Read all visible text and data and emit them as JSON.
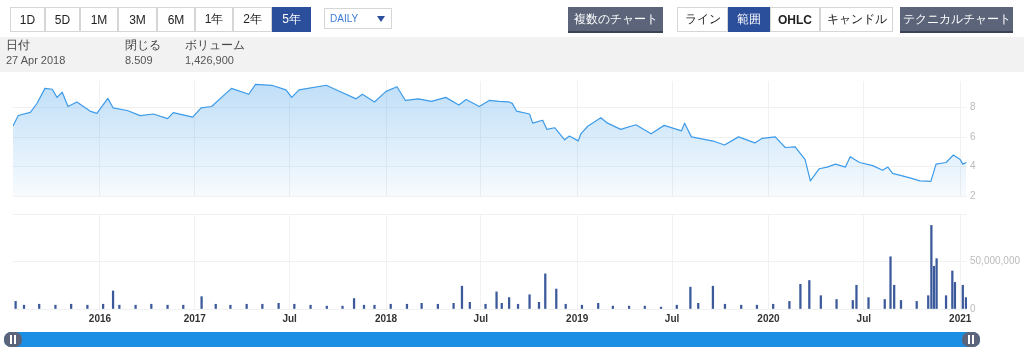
{
  "chart_data": [
    {
      "type": "other",
      "annotations": [
        "1D",
        "5D",
        "1M",
        "3M",
        "6M",
        "1年",
        "2年",
        "5年",
        "DAILY",
        "複数のチャート",
        "ライン",
        "範囲",
        "OHLC",
        "キャンドル",
        "テクニカルチャート",
        "日付",
        "27 Apr 2018",
        "閉じる",
        "8.509",
        "ボリューム",
        "1,426,900"
      ]
    },
    {
      "type": "area",
      "x": [
        "2016-01-20",
        "2016-01-30",
        "2016-02-22",
        "2016-03-06",
        "2016-03-21",
        "2016-04-04",
        "2016-04-13",
        "2016-04-23",
        "2016-05-04",
        "2016-05-21",
        "2016-06-15",
        "2016-06-28",
        "2016-07-19",
        "2016-07-29",
        "2016-08-25",
        "2016-09-19",
        "2016-10-14",
        "2016-11-10",
        "2016-11-21",
        "2016-12-28",
        "2017-01-13",
        "2017-02-02",
        "2017-03-12",
        "2017-04-14",
        "2017-04-27",
        "2017-05-28",
        "2017-06-24",
        "2017-07-05",
        "2017-07-19",
        "2017-09-09",
        "2017-10-04",
        "2017-11-05",
        "2017-11-17",
        "2017-12-10",
        "2018-01-01",
        "2018-01-22",
        "2018-02-07",
        "2018-03-04",
        "2018-03-29",
        "2018-04-25",
        "2018-05-20",
        "2018-06-03",
        "2018-06-28",
        "2018-07-17",
        "2018-08-05",
        "2018-08-24",
        "2018-08-30",
        "2018-09-07",
        "2018-10-02",
        "2018-10-08",
        "2018-10-27",
        "2018-11-04",
        "2018-11-19",
        "2018-12-08",
        "2018-12-17",
        "2019-01-03",
        "2019-01-08",
        "2019-01-21",
        "2019-02-15",
        "2019-02-28",
        "2019-03-25",
        "2019-04-23",
        "2019-05-22",
        "2019-06-16",
        "2019-07-19",
        "2019-07-25",
        "2019-08-07",
        "2019-09-20",
        "2019-10-09",
        "2019-11-05",
        "2019-12-06",
        "2019-12-20",
        "2020-01-14",
        "2020-02-02",
        "2020-02-21",
        "2020-03-11",
        "2020-03-21",
        "2020-04-07",
        "2020-04-22",
        "2020-05-08",
        "2020-05-27",
        "2020-06-05",
        "2020-06-23",
        "2020-07-18",
        "2020-08-06",
        "2020-08-16",
        "2020-08-25",
        "2020-09-27",
        "2020-10-16",
        "2020-11-06",
        "2020-11-16",
        "2020-12-05",
        "2020-12-19",
        "2021-01-01",
        "2021-01-06",
        "2021-01-13"
      ],
      "series": [
        {
          "color": "#3d9be9",
          "values": [
            6.75,
            7.46,
            7.67,
            8.29,
            9.3,
            9.24,
            8.69,
            9.04,
            8.07,
            8.38,
            7.76,
            7.6,
            8.62,
            7.98,
            7.8,
            7.45,
            7.56,
            7.25,
            7.66,
            7.35,
            7.98,
            8.07,
            9.3,
            8.9,
            9.57,
            9.51,
            9.2,
            8.69,
            9.2,
            9.51,
            9.1,
            8.59,
            8.9,
            8.38,
            9.1,
            9.41,
            8.48,
            8.59,
            8.42,
            8.69,
            8.17,
            8.54,
            8.07,
            8.48,
            8.42,
            8.38,
            8.28,
            7.76,
            7.56,
            6.94,
            7.14,
            6.52,
            6.63,
            5.81,
            6.07,
            5.74,
            6.22,
            6.73,
            7.31,
            6.94,
            6.52,
            6.83,
            6.22,
            6.79,
            6.42,
            6.94,
            6.01,
            5.7,
            5.46,
            6.01,
            5.6,
            5.91,
            6.01,
            5.29,
            5.33,
            4.47,
            3.03,
            3.85,
            3.96,
            4.16,
            3.96,
            4.67,
            4.27,
            4.06,
            3.75,
            3.96,
            3.54,
            3.23,
            3.03,
            2.99,
            4.16,
            4.27,
            4.78,
            4.47,
            4.16,
            4.27
          ]
        }
      ],
      "xlim": [
        "2016-01-20",
        "2021-01-14"
      ],
      "xticks": [
        {
          "value": "2016-07-04",
          "label": null
        },
        {
          "value": "2017-01-01",
          "label": null
        },
        {
          "value": "2017-07-01",
          "label": null
        },
        {
          "value": "2018-01-01",
          "label": null
        },
        {
          "value": "2018-07-01",
          "label": null
        },
        {
          "value": "2019-01-01",
          "label": null
        },
        {
          "value": "2019-07-01",
          "label": null
        },
        {
          "value": "2020-01-01",
          "label": null
        },
        {
          "value": "2020-07-01",
          "label": null
        },
        {
          "value": "2021-01-01",
          "label": null
        }
      ],
      "ylim": [
        2,
        9.8
      ],
      "yticks": [
        2,
        4,
        6,
        8
      ],
      "grid": true,
      "tick_labels": "y"
    },
    {
      "type": "bar",
      "x": [
        "2016-01-25",
        "2016-02-10",
        "2016-03-10",
        "2016-04-10",
        "2016-05-10",
        "2016-06-10",
        "2016-07-10",
        "2016-07-29",
        "2016-08-10",
        "2016-09-10",
        "2016-10-10",
        "2016-11-10",
        "2016-12-10",
        "2017-01-14",
        "2017-02-10",
        "2017-03-10",
        "2017-04-10",
        "2017-05-10",
        "2017-06-10",
        "2017-07-10",
        "2017-08-10",
        "2017-09-10",
        "2017-10-10",
        "2017-11-01",
        "2017-11-20",
        "2017-12-10",
        "2018-01-10",
        "2018-02-10",
        "2018-03-10",
        "2018-04-10",
        "2018-05-10",
        "2018-05-26",
        "2018-06-10",
        "2018-07-10",
        "2018-07-31",
        "2018-08-10",
        "2018-08-24",
        "2018-09-10",
        "2018-10-02",
        "2018-10-20",
        "2018-11-01",
        "2018-11-22",
        "2018-12-10",
        "2019-01-10",
        "2019-02-10",
        "2019-03-10",
        "2019-04-10",
        "2019-05-10",
        "2019-06-10",
        "2019-07-10",
        "2019-08-05",
        "2019-08-20",
        "2019-09-17",
        "2019-10-10",
        "2019-11-10",
        "2019-12-10",
        "2020-01-10",
        "2020-02-10",
        "2020-03-02",
        "2020-03-19",
        "2020-04-10",
        "2020-05-10",
        "2020-06-10",
        "2020-06-17",
        "2020-07-10",
        "2020-08-10",
        "2020-08-21",
        "2020-08-28",
        "2020-09-10",
        "2020-10-10",
        "2020-11-01",
        "2020-11-07",
        "2020-11-12",
        "2020-11-17",
        "2020-12-05",
        "2020-12-17",
        "2020-12-22",
        "2021-01-06",
        "2021-01-12"
      ],
      "series": [
        {
          "color": "#3c5a9b",
          "values": [
            8000000,
            4000000,
            5000000,
            4000000,
            5000000,
            4000000,
            5000000,
            19000000,
            4000000,
            4000000,
            5000000,
            4000000,
            4000000,
            13000000,
            5000000,
            4000000,
            5000000,
            5000000,
            6000000,
            5000000,
            4000000,
            3000000,
            3000000,
            11000000,
            4000000,
            4000000,
            5000000,
            5000000,
            6000000,
            5000000,
            6000000,
            24000000,
            7000000,
            5000000,
            18000000,
            6000000,
            12000000,
            5000000,
            15000000,
            7000000,
            37000000,
            21000000,
            5000000,
            4000000,
            6000000,
            3000000,
            3000000,
            3000000,
            2000000,
            4000000,
            23000000,
            6000000,
            24000000,
            5000000,
            4000000,
            4000000,
            5000000,
            8000000,
            26000000,
            30000000,
            14000000,
            10000000,
            9000000,
            25000000,
            12000000,
            10000000,
            55000000,
            25000000,
            9000000,
            8000000,
            14000000,
            88000000,
            45000000,
            53000000,
            14000000,
            40000000,
            28000000,
            25000000,
            12000000
          ]
        }
      ],
      "xlim": [
        "2016-01-20",
        "2021-01-14"
      ],
      "xticks": [
        {
          "value": "2016-07-04",
          "label": "2016"
        },
        {
          "value": "2017-01-01",
          "label": "2017"
        },
        {
          "value": "2017-07-01",
          "label": "Jul"
        },
        {
          "value": "2018-01-01",
          "label": "2018"
        },
        {
          "value": "2018-07-01",
          "label": "Jul"
        },
        {
          "value": "2019-01-01",
          "label": "2019"
        },
        {
          "value": "2019-07-01",
          "label": "Jul"
        },
        {
          "value": "2020-01-01",
          "label": "2020"
        },
        {
          "value": "2020-07-01",
          "label": "Jul"
        },
        {
          "value": "2021-01-01",
          "label": "2021"
        }
      ],
      "ylim": [
        0,
        100000000
      ],
      "yticks": [
        0,
        {
          "value": 50000000,
          "label": "50,000,000"
        },
        {
          "value": 100000000,
          "label": null
        }
      ],
      "grid": true
    }
  ]
}
